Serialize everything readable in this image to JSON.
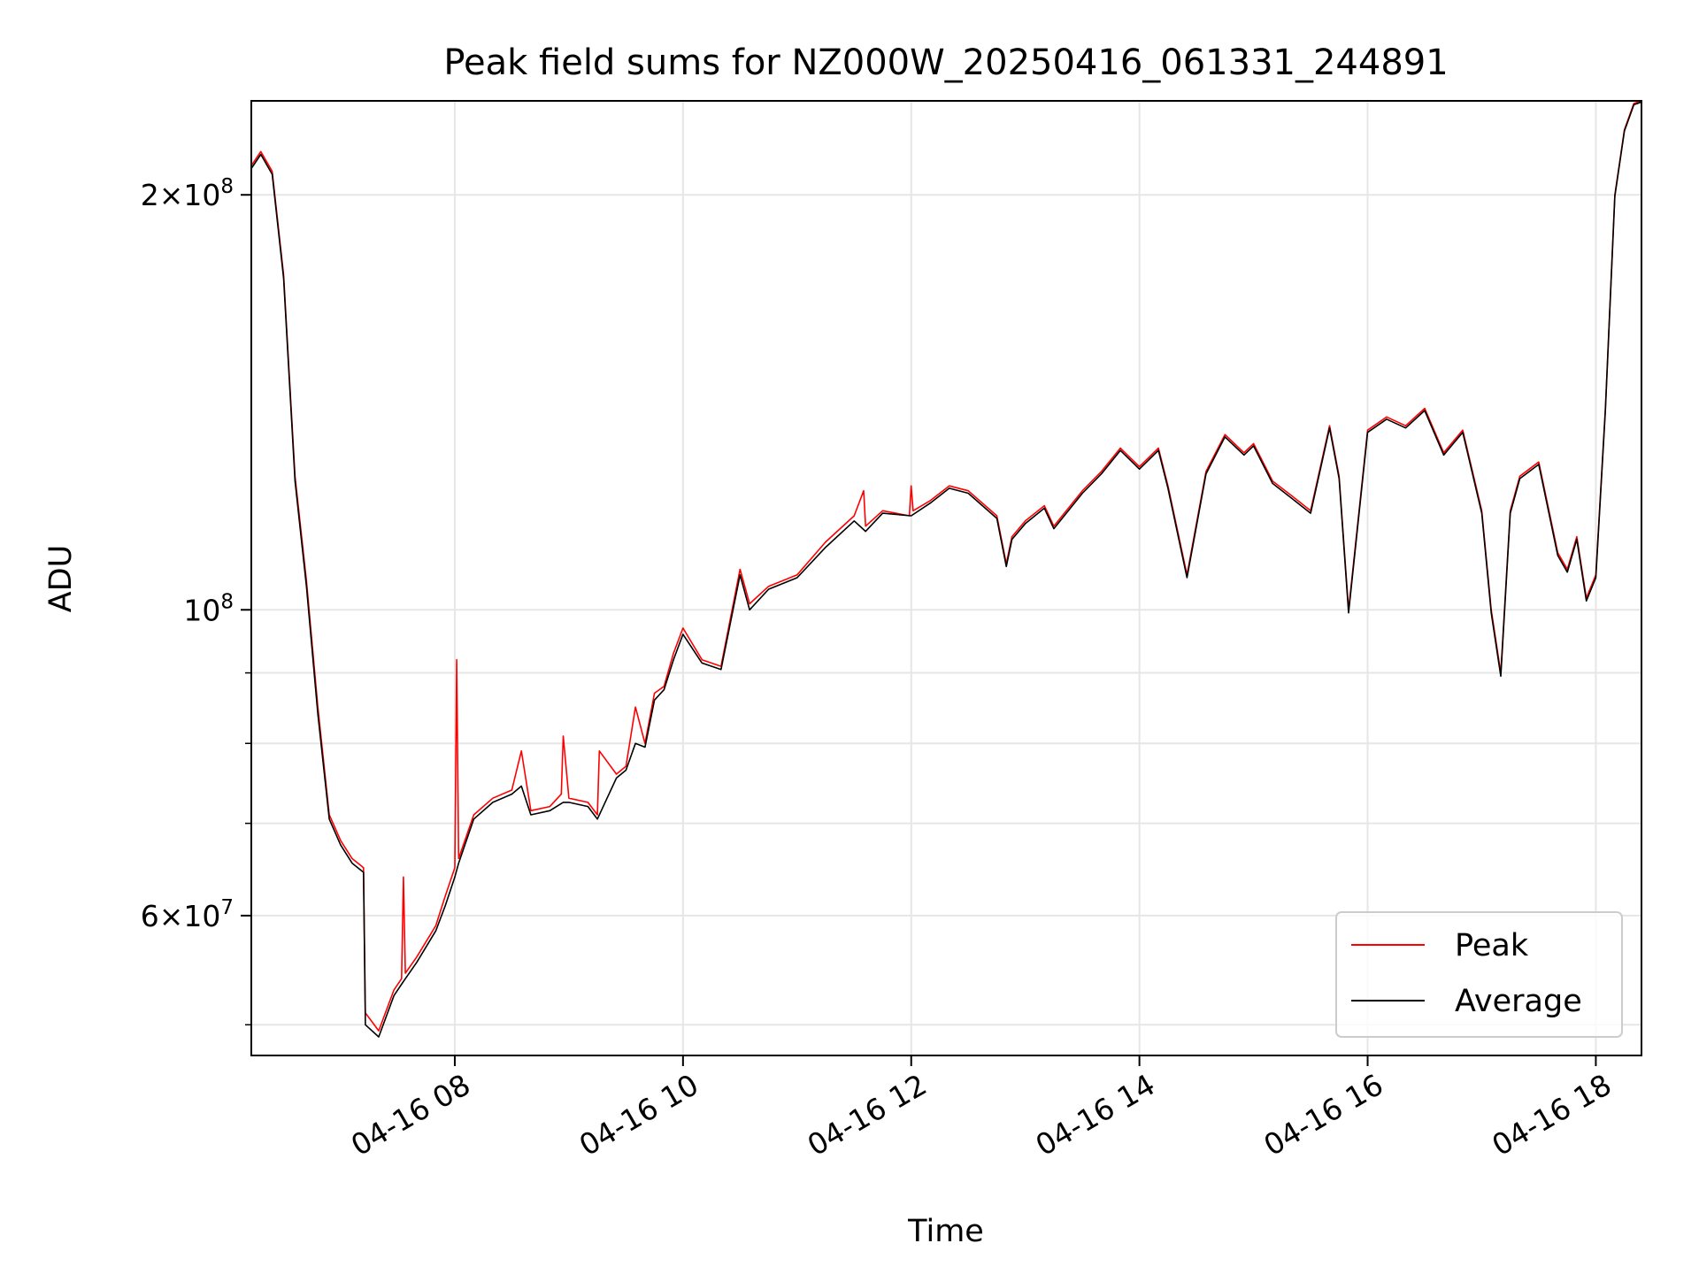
{
  "chart_data": {
    "type": "line",
    "title": "Peak field sums for NZ000W_20250416_061331_244891",
    "xlabel": "Time",
    "ylabel": "ADU",
    "y_scale": "log",
    "xlim": [
      "2025-04-16 06:13",
      "2025-04-16 18:24"
    ],
    "ylim": [
      47500000,
      234000000
    ],
    "x_ticks": [
      {
        "value": "2025-04-16 08:00",
        "label": "04-16 08"
      },
      {
        "value": "2025-04-16 10:00",
        "label": "04-16 10"
      },
      {
        "value": "2025-04-16 12:00",
        "label": "04-16 12"
      },
      {
        "value": "2025-04-16 14:00",
        "label": "04-16 14"
      },
      {
        "value": "2025-04-16 16:00",
        "label": "04-16 16"
      },
      {
        "value": "2025-04-16 18:00",
        "label": "04-16 18"
      }
    ],
    "y_major_ticks": [
      {
        "value": 60000000,
        "mantissa": "6",
        "exp": "7",
        "prefix": "6×10"
      },
      {
        "value": 100000000,
        "mantissa": "",
        "exp": "8",
        "prefix": "10"
      },
      {
        "value": 200000000,
        "mantissa": "2",
        "exp": "8",
        "prefix": "2×10"
      }
    ],
    "y_minor_ticks": [
      50000000,
      70000000,
      80000000,
      90000000
    ],
    "grid": true,
    "legend_position": "bottom-right",
    "series": [
      {
        "name": "Peak",
        "color": "#ff0000",
        "x": [
          "2025-04-16 06:13",
          "2025-04-16 06:18",
          "2025-04-16 06:24",
          "2025-04-16 06:30",
          "2025-04-16 06:36",
          "2025-04-16 06:42",
          "2025-04-16 06:48",
          "2025-04-16 06:54",
          "2025-04-16 07:00",
          "2025-04-16 07:06",
          "2025-04-16 07:12",
          "2025-04-16 07:13",
          "2025-04-16 07:20",
          "2025-04-16 07:28",
          "2025-04-16 07:32",
          "2025-04-16 07:33",
          "2025-04-16 07:34",
          "2025-04-16 07:40",
          "2025-04-16 07:50",
          "2025-04-16 07:55",
          "2025-04-16 08:00",
          "2025-04-16 08:01",
          "2025-04-16 08:02",
          "2025-04-16 08:10",
          "2025-04-16 08:20",
          "2025-04-16 08:30",
          "2025-04-16 08:35",
          "2025-04-16 08:40",
          "2025-04-16 08:50",
          "2025-04-16 08:56",
          "2025-04-16 08:57",
          "2025-04-16 09:00",
          "2025-04-16 09:10",
          "2025-04-16 09:15",
          "2025-04-16 09:16",
          "2025-04-16 09:25",
          "2025-04-16 09:30",
          "2025-04-16 09:35",
          "2025-04-16 09:40",
          "2025-04-16 09:45",
          "2025-04-16 09:50",
          "2025-04-16 09:55",
          "2025-04-16 10:00",
          "2025-04-16 10:10",
          "2025-04-16 10:20",
          "2025-04-16 10:30",
          "2025-04-16 10:35",
          "2025-04-16 10:45",
          "2025-04-16 11:00",
          "2025-04-16 11:15",
          "2025-04-16 11:30",
          "2025-04-16 11:35",
          "2025-04-16 11:36",
          "2025-04-16 11:45",
          "2025-04-16 11:59",
          "2025-04-16 12:00",
          "2025-04-16 12:01",
          "2025-04-16 12:10",
          "2025-04-16 12:20",
          "2025-04-16 12:30",
          "2025-04-16 12:45",
          "2025-04-16 12:50",
          "2025-04-16 12:53",
          "2025-04-16 13:00",
          "2025-04-16 13:10",
          "2025-04-16 13:15",
          "2025-04-16 13:30",
          "2025-04-16 13:40",
          "2025-04-16 13:50",
          "2025-04-16 14:00",
          "2025-04-16 14:10",
          "2025-04-16 14:15",
          "2025-04-16 14:25",
          "2025-04-16 14:35",
          "2025-04-16 14:45",
          "2025-04-16 14:55",
          "2025-04-16 15:00",
          "2025-04-16 15:10",
          "2025-04-16 15:20",
          "2025-04-16 15:30",
          "2025-04-16 15:40",
          "2025-04-16 15:45",
          "2025-04-16 15:50",
          "2025-04-16 16:00",
          "2025-04-16 16:10",
          "2025-04-16 16:20",
          "2025-04-16 16:30",
          "2025-04-16 16:40",
          "2025-04-16 16:50",
          "2025-04-16 17:00",
          "2025-04-16 17:05",
          "2025-04-16 17:10",
          "2025-04-16 17:15",
          "2025-04-16 17:20",
          "2025-04-16 17:30",
          "2025-04-16 17:40",
          "2025-04-16 17:45",
          "2025-04-16 17:50",
          "2025-04-16 17:55",
          "2025-04-16 18:00",
          "2025-04-16 18:05",
          "2025-04-16 18:10",
          "2025-04-16 18:15",
          "2025-04-16 18:20",
          "2025-04-16 18:24"
        ],
        "values": [
          210000000,
          215000000,
          208000000,
          175000000,
          125000000,
          105000000,
          85000000,
          71000000,
          68000000,
          66000000,
          65000000,
          51000000,
          49500000,
          53000000,
          54000000,
          64000000,
          54500000,
          56000000,
          59000000,
          62000000,
          65000000,
          92000000,
          66000000,
          71000000,
          73000000,
          74000000,
          79000000,
          71500000,
          72000000,
          73500000,
          81000000,
          73000000,
          72500000,
          71000000,
          79000000,
          76000000,
          77000000,
          85000000,
          80000000,
          87000000,
          88000000,
          93000000,
          97000000,
          92000000,
          91000000,
          107000000,
          101000000,
          104000000,
          106000000,
          112000000,
          117000000,
          122000000,
          115000000,
          118000000,
          117000000,
          123000000,
          118000000,
          120000000,
          123000000,
          122000000,
          117000000,
          108000000,
          113000000,
          116000000,
          119000000,
          115000000,
          122000000,
          126000000,
          131000000,
          127000000,
          131000000,
          123000000,
          106000000,
          126000000,
          134000000,
          130000000,
          132000000,
          124000000,
          121000000,
          118000000,
          136000000,
          125000000,
          100000000,
          135000000,
          138000000,
          136000000,
          140000000,
          130000000,
          135000000,
          118000000,
          100000000,
          90000000,
          118000000,
          125000000,
          128000000,
          110000000,
          107000000,
          113000000,
          102000000,
          106000000,
          140000000,
          200000000,
          223000000,
          233000000,
          234000000
        ]
      },
      {
        "name": "Average",
        "color": "#000000",
        "x": [
          "2025-04-16 06:13",
          "2025-04-16 06:18",
          "2025-04-16 06:24",
          "2025-04-16 06:30",
          "2025-04-16 06:36",
          "2025-04-16 06:42",
          "2025-04-16 06:48",
          "2025-04-16 06:54",
          "2025-04-16 07:00",
          "2025-04-16 07:06",
          "2025-04-16 07:12",
          "2025-04-16 07:13",
          "2025-04-16 07:20",
          "2025-04-16 07:28",
          "2025-04-16 07:32",
          "2025-04-16 07:34",
          "2025-04-16 07:40",
          "2025-04-16 07:50",
          "2025-04-16 07:55",
          "2025-04-16 08:00",
          "2025-04-16 08:02",
          "2025-04-16 08:10",
          "2025-04-16 08:20",
          "2025-04-16 08:30",
          "2025-04-16 08:35",
          "2025-04-16 08:40",
          "2025-04-16 08:50",
          "2025-04-16 08:57",
          "2025-04-16 09:00",
          "2025-04-16 09:10",
          "2025-04-16 09:15",
          "2025-04-16 09:25",
          "2025-04-16 09:30",
          "2025-04-16 09:35",
          "2025-04-16 09:40",
          "2025-04-16 09:45",
          "2025-04-16 09:50",
          "2025-04-16 09:55",
          "2025-04-16 10:00",
          "2025-04-16 10:10",
          "2025-04-16 10:20",
          "2025-04-16 10:30",
          "2025-04-16 10:35",
          "2025-04-16 10:45",
          "2025-04-16 11:00",
          "2025-04-16 11:15",
          "2025-04-16 11:30",
          "2025-04-16 11:36",
          "2025-04-16 11:45",
          "2025-04-16 12:00",
          "2025-04-16 12:10",
          "2025-04-16 12:20",
          "2025-04-16 12:30",
          "2025-04-16 12:45",
          "2025-04-16 12:50",
          "2025-04-16 12:53",
          "2025-04-16 13:00",
          "2025-04-16 13:10",
          "2025-04-16 13:15",
          "2025-04-16 13:30",
          "2025-04-16 13:40",
          "2025-04-16 13:50",
          "2025-04-16 14:00",
          "2025-04-16 14:10",
          "2025-04-16 14:15",
          "2025-04-16 14:25",
          "2025-04-16 14:35",
          "2025-04-16 14:45",
          "2025-04-16 14:55",
          "2025-04-16 15:00",
          "2025-04-16 15:10",
          "2025-04-16 15:20",
          "2025-04-16 15:30",
          "2025-04-16 15:40",
          "2025-04-16 15:45",
          "2025-04-16 15:50",
          "2025-04-16 16:00",
          "2025-04-16 16:10",
          "2025-04-16 16:20",
          "2025-04-16 16:30",
          "2025-04-16 16:40",
          "2025-04-16 16:50",
          "2025-04-16 17:00",
          "2025-04-16 17:05",
          "2025-04-16 17:10",
          "2025-04-16 17:15",
          "2025-04-16 17:20",
          "2025-04-16 17:30",
          "2025-04-16 17:40",
          "2025-04-16 17:45",
          "2025-04-16 17:50",
          "2025-04-16 17:55",
          "2025-04-16 18:00",
          "2025-04-16 18:05",
          "2025-04-16 18:10",
          "2025-04-16 18:15",
          "2025-04-16 18:20",
          "2025-04-16 18:24"
        ],
        "values": [
          209000000,
          214000000,
          207000000,
          174000000,
          124000000,
          104000000,
          84000000,
          70500000,
          67500000,
          65500000,
          64500000,
          50000000,
          49000000,
          52500000,
          53500000,
          54000000,
          55500000,
          58500000,
          61000000,
          64000000,
          65500000,
          70500000,
          72500000,
          73500000,
          74500000,
          71000000,
          71500000,
          72500000,
          72500000,
          72000000,
          70500000,
          75500000,
          76500000,
          80000000,
          79500000,
          86000000,
          87500000,
          92000000,
          96000000,
          91500000,
          90500000,
          106000000,
          100000000,
          103500000,
          105500000,
          111000000,
          116000000,
          114000000,
          117500000,
          117000000,
          119500000,
          122500000,
          121500000,
          116500000,
          107500000,
          112500000,
          115500000,
          118500000,
          114500000,
          121500000,
          125500000,
          130500000,
          126500000,
          130500000,
          122500000,
          105500000,
          125500000,
          133500000,
          129500000,
          131500000,
          123500000,
          120500000,
          117500000,
          135500000,
          124500000,
          99500000,
          134500000,
          137500000,
          135500000,
          139500000,
          129500000,
          134500000,
          117500000,
          99500000,
          89500000,
          117500000,
          124500000,
          127500000,
          109500000,
          106500000,
          112500000,
          101500000,
          105500000,
          139500000,
          199500000,
          222500000,
          232500000,
          233500000
        ]
      }
    ]
  }
}
